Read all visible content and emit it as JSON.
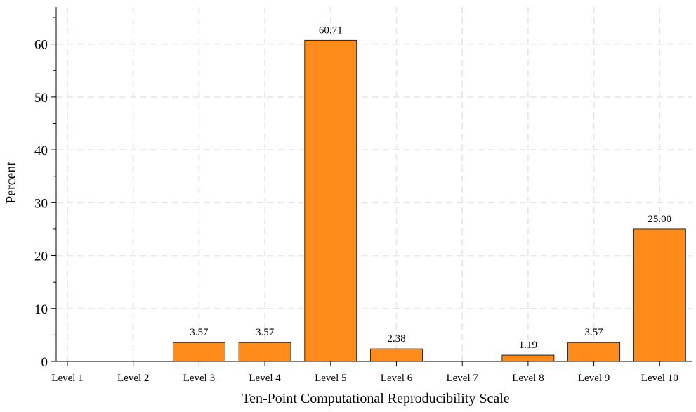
{
  "chart_data": {
    "type": "bar",
    "categories": [
      "Level 1",
      "Level 2",
      "Level 3",
      "Level 4",
      "Level 5",
      "Level 6",
      "Level 7",
      "Level 8",
      "Level 9",
      "Level 10"
    ],
    "values": [
      0,
      0,
      3.57,
      3.57,
      60.71,
      2.38,
      0,
      1.19,
      3.57,
      25.0
    ],
    "data_labels": [
      "",
      "",
      "3.57",
      "3.57",
      "60.71",
      "2.38",
      "",
      "1.19",
      "3.57",
      "25.00"
    ],
    "title": "",
    "xlabel": "Ten-Point Computational Reproducibility Scale",
    "ylabel": "Percent",
    "ylim": [
      0,
      67
    ],
    "yticks": [
      0,
      10,
      20,
      30,
      40,
      50,
      60
    ],
    "ytick_labels": [
      "0",
      "10",
      "20",
      "30",
      "40",
      "50",
      "60"
    ],
    "grid": true,
    "legend": "none",
    "bar_color": "#ff8c1a"
  }
}
